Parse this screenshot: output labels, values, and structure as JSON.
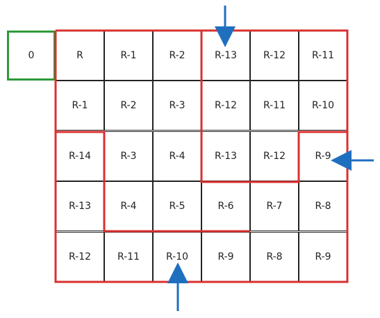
{
  "start_cell": "0",
  "grid": {
    "rows": [
      [
        "R",
        "R-1",
        "R-2",
        "R-13",
        "R-12",
        "R-11"
      ],
      [
        "R-1",
        "R-2",
        "R-3",
        "R-12",
        "R-11",
        "R-10"
      ],
      [
        "R-14",
        "R-3",
        "R-4",
        "R-13",
        "R-12",
        "R-9"
      ],
      [
        "R-13",
        "R-4",
        "R-5",
        "R-6",
        "R-7",
        "R-8"
      ],
      [
        "R-12",
        "R-11",
        "R-10",
        "R-9",
        "R-8",
        "R-9"
      ]
    ]
  },
  "colors": {
    "region_outline": "#d93030",
    "start_outline": "#2e9a3a",
    "arrow": "#1f6fbf",
    "cell_border": "#222222"
  }
}
